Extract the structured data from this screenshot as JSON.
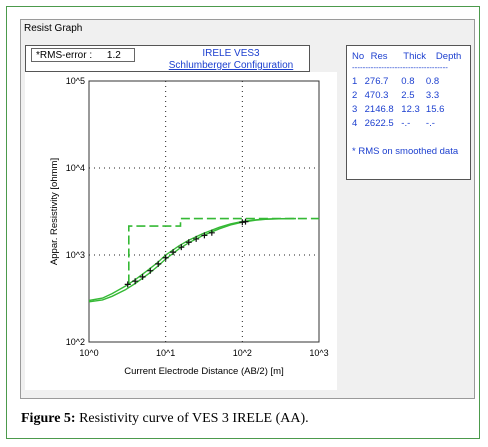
{
  "window": {
    "title": "Resist Graph"
  },
  "rms": {
    "label": "*RMS-error :",
    "value": "1.2"
  },
  "chart_data": {
    "type": "line",
    "title": "IRELE VES3",
    "subtitle": "Schlumberger Configuration",
    "xlabel": "Current Electrode Distance (AB/2) [m]",
    "ylabel": "Appar. Resistivity [ohmm]",
    "xscale": "log",
    "yscale": "log",
    "xlim": [
      1,
      1000
    ],
    "ylim": [
      100,
      100000
    ],
    "x_ticks": [
      "10^0",
      "10^1",
      "10^2",
      "10^3"
    ],
    "y_ticks": [
      "10^2",
      "10^3",
      "10^4",
      "10^5"
    ],
    "grid": true,
    "series": [
      {
        "style": "dashed-step",
        "x": [
          3.3,
          3.3,
          15.6,
          15.6,
          1000
        ],
        "y": [
          470.3,
          2146.8,
          2146.8,
          2622.5,
          2622.5
        ]
      },
      {
        "style": "solid-curve-upper",
        "x": [
          1,
          1.5,
          2,
          3,
          4,
          6,
          8,
          10,
          15,
          20,
          30,
          50,
          70,
          100,
          150,
          200,
          300,
          500
        ],
        "y": [
          300,
          320,
          360,
          440,
          520,
          680,
          830,
          1000,
          1280,
          1480,
          1750,
          2080,
          2280,
          2430,
          2540,
          2590,
          2615,
          2622
        ]
      },
      {
        "style": "solid-curve-lower",
        "x": [
          1,
          1.5,
          2,
          3,
          4,
          6,
          8,
          10,
          15,
          20,
          30,
          50,
          70,
          100,
          150,
          200,
          300,
          500
        ],
        "y": [
          290,
          305,
          335,
          400,
          470,
          610,
          750,
          900,
          1180,
          1380,
          1660,
          2000,
          2210,
          2380,
          2510,
          2570,
          2610,
          2620
        ]
      },
      {
        "style": "markers",
        "x": [
          3.2,
          4,
          5,
          6.3,
          8,
          10,
          12.5,
          16,
          20,
          25,
          32,
          40,
          100,
          110
        ],
        "y": [
          460,
          500,
          560,
          660,
          790,
          930,
          1080,
          1230,
          1400,
          1530,
          1680,
          1800,
          2380,
          2420
        ]
      }
    ]
  },
  "layer_table": {
    "header": [
      "No",
      "Res",
      "Thick",
      "Depth"
    ],
    "divider": "------------------------------------",
    "rows": [
      [
        "1",
        "276.7",
        "0.8",
        "0.8"
      ],
      [
        "2",
        "470.3",
        "2.5",
        "3.3"
      ],
      [
        "3",
        "2146.8",
        "12.3",
        "15.6"
      ],
      [
        "4",
        "2622.5",
        "-.-",
        "-.-"
      ]
    ],
    "note": "* RMS on smoothed data"
  },
  "caption": {
    "label": "Figure 5:",
    "text": " Resistivity curve of VES 3 IRELE (AA)."
  },
  "colors": {
    "curve": "#35b935",
    "title": "#1c3fcf",
    "grid": "#222222"
  }
}
